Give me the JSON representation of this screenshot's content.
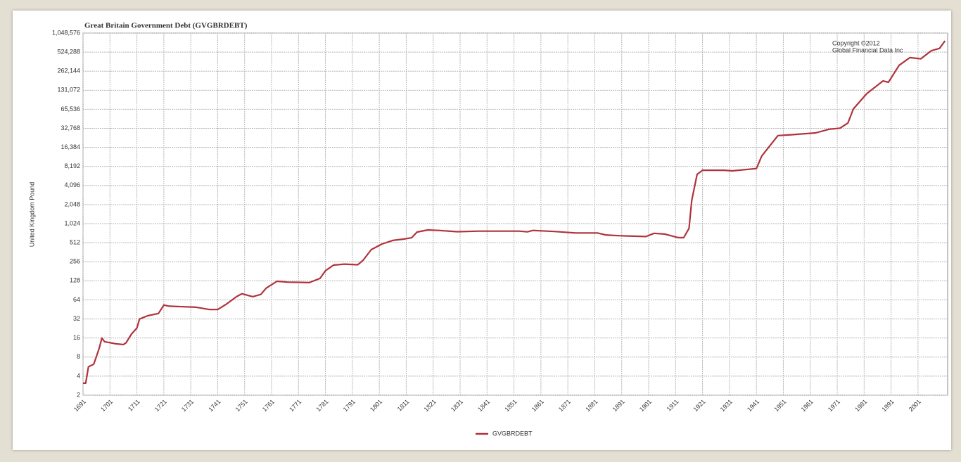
{
  "chart_data": {
    "type": "line",
    "title": "Great Britain Government Debt (GVGBRDEBT)",
    "y_label": "United Kingdom Pound",
    "annotation": [
      "Copyright ©2012",
      "Global Financial Data Inc"
    ],
    "log_y": true,
    "log_base": 2,
    "grid": true,
    "legend": "bottom",
    "x": [
      1691,
      1692,
      1693,
      1695,
      1697,
      1698,
      1699,
      1701,
      1703,
      1706,
      1707,
      1709,
      1711,
      1712,
      1715,
      1719,
      1721,
      1723,
      1733,
      1738,
      1741,
      1744,
      1748,
      1750,
      1754,
      1757,
      1759,
      1763,
      1767,
      1775,
      1779,
      1781,
      1784,
      1788,
      1793,
      1795,
      1798,
      1802,
      1806,
      1810,
      1813,
      1815,
      1819,
      1823,
      1830,
      1838,
      1853,
      1856,
      1858,
      1866,
      1874,
      1882,
      1885,
      1890,
      1900,
      1903,
      1907,
      1912,
      1914,
      1916,
      1917,
      1919,
      1921,
      1929,
      1932,
      1941,
      1943,
      1949,
      1954,
      1963,
      1968,
      1972,
      1975,
      1977,
      1982,
      1988,
      1990,
      1994,
      1998,
      2002,
      2006,
      2009,
      2011
    ],
    "series": [
      {
        "name": "GVGBRDEBT",
        "color": "#b0323c",
        "values": [
          3.1,
          3.1,
          5.6,
          6.2,
          11,
          16,
          14,
          13.5,
          13,
          12.6,
          13.5,
          18.5,
          23,
          32,
          36,
          39,
          53,
          51,
          49,
          45,
          45,
          54,
          72,
          80,
          72,
          78,
          98,
          126,
          122,
          120,
          140,
          185,
          227,
          235,
          230,
          271,
          398,
          488,
          556,
          584,
          614,
          755,
          815,
          800,
          765,
          780,
          780,
          760,
          800,
          770,
          730,
          730,
          680,
          660,
          640,
          720,
          700,
          617,
          615,
          861,
          2390,
          6150,
          7140,
          7140,
          6980,
          7590,
          12000,
          25200,
          26000,
          27800,
          31700,
          33000,
          39800,
          66400,
          116000,
          184000,
          175000,
          325000,
          429000,
          410000,
          553000,
          600000,
          790000
        ]
      }
    ],
    "xlim": [
      1691,
      2012
    ],
    "xticks": [
      1691,
      1701,
      1711,
      1721,
      1731,
      1741,
      1751,
      1761,
      1771,
      1781,
      1791,
      1801,
      1811,
      1821,
      1831,
      1841,
      1851,
      1861,
      1871,
      1881,
      1891,
      1901,
      1911,
      1921,
      1931,
      1941,
      1951,
      1961,
      1971,
      1981,
      1991,
      2001
    ],
    "ylim": [
      2,
      1048576
    ],
    "yticks": [
      2,
      4,
      8,
      16,
      32,
      64,
      128,
      256,
      512,
      {
        "value": 1024,
        "label": "1,024"
      },
      {
        "value": 2048,
        "label": "2,048"
      },
      {
        "value": 4096,
        "label": "4,096"
      },
      {
        "value": 8192,
        "label": "8,192"
      },
      {
        "value": 16384,
        "label": "16,384"
      },
      {
        "value": 32768,
        "label": "32,768"
      },
      {
        "value": 65536,
        "label": "65,536"
      },
      {
        "value": 131072,
        "label": "131,072"
      },
      {
        "value": 262144,
        "label": "262,144"
      },
      {
        "value": 524288,
        "label": "524,288"
      },
      {
        "value": 1048576,
        "label": "1,048,576"
      }
    ]
  }
}
